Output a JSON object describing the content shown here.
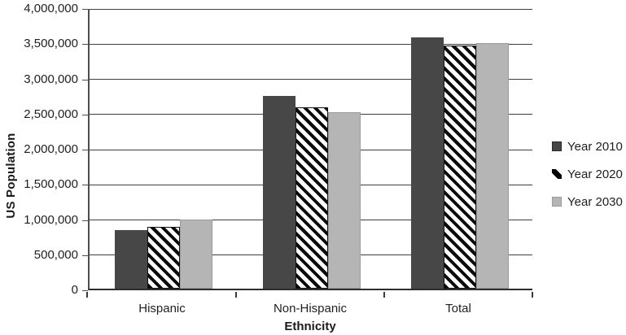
{
  "chart_data": {
    "type": "bar",
    "title": "",
    "xlabel": "Ethnicity",
    "ylabel": "US Population",
    "categories": [
      "Hispanic",
      "Non-Hispanic",
      "Total"
    ],
    "series": [
      {
        "name": "Year 2010",
        "style": "solid-dark",
        "color": "#474747",
        "values": [
          830000,
          2740000,
          3570000
        ]
      },
      {
        "name": "Year 2020",
        "style": "diagonal-hatch",
        "color": "#000000",
        "values": [
          880000,
          2580000,
          3460000
        ]
      },
      {
        "name": "Year 2030",
        "style": "solid-light",
        "color": "#b5b5b5",
        "values": [
          980000,
          2510000,
          3490000
        ]
      }
    ],
    "ylim": [
      0,
      4000000
    ],
    "ytick_step": 500000,
    "ytick_labels": [
      "0",
      "500,000",
      "1,000,000",
      "1,500,000",
      "2,000,000",
      "2,500,000",
      "3,000,000",
      "3,500,000",
      "4,000,000"
    ],
    "legend_position": "right",
    "grid": "horizontal-only",
    "colors": {
      "axis": "#2e2e2e",
      "gridline": "#3f3f3f",
      "text": "#1f1f1f",
      "background": "#ffffff"
    }
  }
}
